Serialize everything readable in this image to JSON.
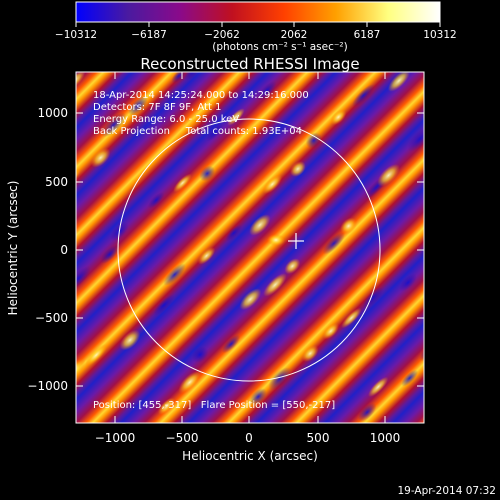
{
  "colorbar": {
    "ticks": [
      "−10312",
      "−6187",
      "−2062",
      "2062",
      "6187",
      "10312"
    ],
    "unit_label": "(photons cm⁻² s⁻¹ asec⁻²)",
    "colormap": [
      "#0000ff",
      "#4a1aa0",
      "#8a0a8a",
      "#c01020",
      "#ff4000",
      "#ffa000",
      "#ffff80",
      "#ffffff"
    ]
  },
  "plot": {
    "title": "Reconstructed RHESSI Image",
    "xlabel": "Heliocentric X (arcsec)",
    "ylabel": "Heliocentric Y (arcsec)",
    "xticks": [
      "−1000",
      "−500",
      "0",
      "500",
      "1000"
    ],
    "yticks": [
      "1000",
      "500",
      "0",
      "−500",
      "−1000"
    ],
    "annotations": [
      "18-Apr-2014 14:25:24.000 to 14:29:16.000",
      "Detectors: 7F 8F 9F, Att 1",
      "Energy Range: 6.0 - 25.0 keV",
      "Back Projection     Total counts: 1.93E+04"
    ],
    "bottom_note": "Position: [455,-317]   Flare Position = [550,-217]"
  },
  "footer": {
    "timestamp": "19-Apr-2014 07:32"
  }
}
